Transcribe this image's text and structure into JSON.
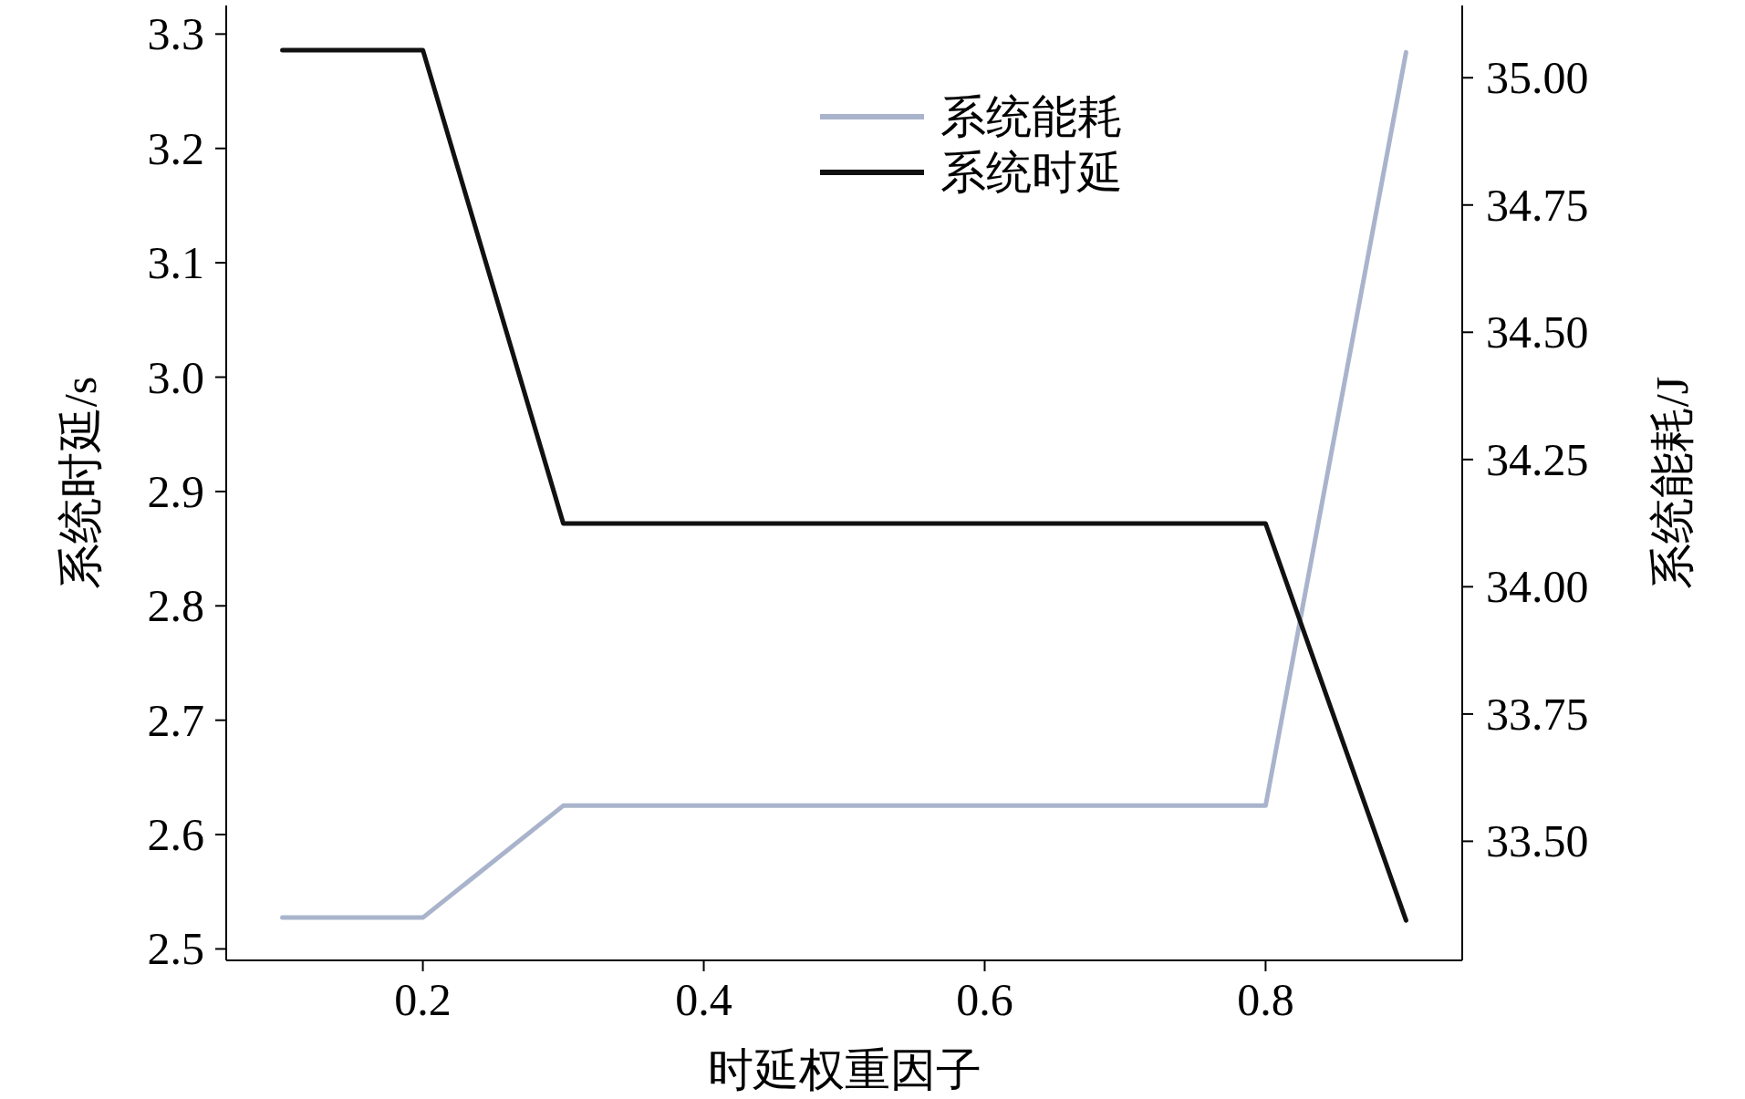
{
  "chart_data": {
    "type": "line",
    "xlabel": "时延权重因子",
    "ylabel": "系统时延/s",
    "y2label": "系统能耗/J",
    "x": [
      0.1,
      0.2,
      0.3,
      0.4,
      0.5,
      0.6,
      0.7,
      0.8,
      0.9
    ],
    "series": [
      {
        "name": "系统能耗",
        "color": "#a9b4cc",
        "axis": "y2",
        "values": [
          33.35,
          33.35,
          33.57,
          33.57,
          33.57,
          33.57,
          33.57,
          33.57,
          35.05
        ]
      },
      {
        "name": "系统时延",
        "color": "#111111",
        "values": [
          3.286,
          3.286,
          2.872,
          2.872,
          2.872,
          2.872,
          2.872,
          2.872,
          2.525
        ]
      }
    ],
    "xlim": [
      0.06,
      0.94
    ],
    "xticks": [
      0.2,
      0.4,
      0.6,
      0.8
    ],
    "ylim": [
      2.49,
      3.325
    ],
    "yticks": [
      2.5,
      2.6,
      2.7,
      2.8,
      2.9,
      {
        "value": 3,
        "label": "3.0"
      },
      3.1,
      3.2,
      3.3
    ],
    "y2lim": [
      33.266,
      35.142
    ],
    "y2ticks": [
      {
        "value": 33.5,
        "label": "33.50"
      },
      33.75,
      {
        "value": 34,
        "label": "34.00"
      },
      34.25,
      {
        "value": 34.5,
        "label": "34.50"
      },
      34.75,
      {
        "value": 35,
        "label": "35.00"
      }
    ],
    "legend": "top",
    "grid": false,
    "line_style": "solid",
    "marker": "none"
  }
}
